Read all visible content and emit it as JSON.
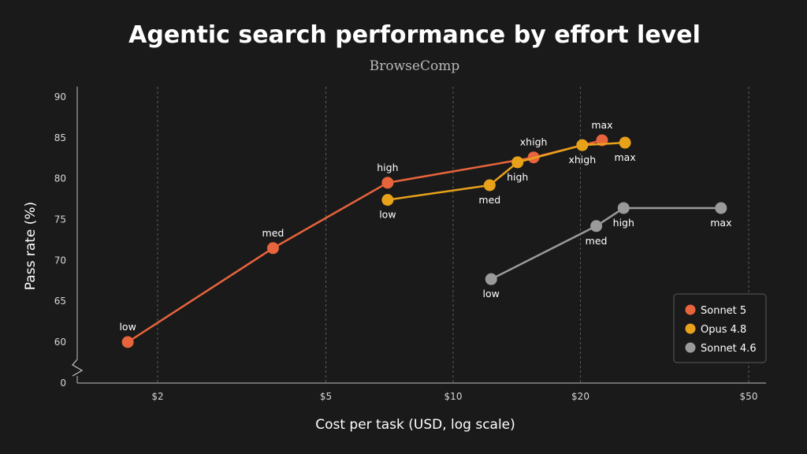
{
  "chart_data": {
    "type": "line",
    "title": "Agentic search performance by effort level",
    "subtitle": "BrowseComp",
    "xlabel": "Cost per task (USD, log scale)",
    "ylabel": "Pass rate (%)",
    "x_scale": "log",
    "x_ticks": [
      {
        "value": 2,
        "label": "$2"
      },
      {
        "value": 5,
        "label": "$5"
      },
      {
        "value": 10,
        "label": "$10"
      },
      {
        "value": 20,
        "label": "$20"
      },
      {
        "value": 50,
        "label": "$50"
      }
    ],
    "y_ticks": [
      90,
      85,
      80,
      75,
      70,
      65,
      60,
      0
    ],
    "y_axis_break": true,
    "ylim": [
      60,
      90
    ],
    "xlim": [
      1.4,
      52
    ],
    "grid": "vertical-dashed",
    "legend_position": "bottom-right",
    "series": [
      {
        "name": "Sonnet 5",
        "color": "#e8643c",
        "points": [
          {
            "x": 1.7,
            "y": 60.0,
            "label": "low",
            "label_pos": "above"
          },
          {
            "x": 3.75,
            "y": 71.5,
            "label": "med",
            "label_pos": "above"
          },
          {
            "x": 7.0,
            "y": 79.5,
            "label": "high",
            "label_pos": "above"
          },
          {
            "x": 15.5,
            "y": 82.6,
            "label": "xhigh",
            "label_pos": "above"
          },
          {
            "x": 22.5,
            "y": 84.7,
            "label": "max",
            "label_pos": "above"
          }
        ]
      },
      {
        "name": "Opus 4.8",
        "color": "#e8a21a",
        "points": [
          {
            "x": 7.0,
            "y": 77.4,
            "label": "low",
            "label_pos": "below"
          },
          {
            "x": 12.2,
            "y": 79.2,
            "label": "med",
            "label_pos": "below"
          },
          {
            "x": 14.2,
            "y": 82.0,
            "label": "high",
            "label_pos": "below"
          },
          {
            "x": 20.2,
            "y": 84.1,
            "label": "xhigh",
            "label_pos": "below"
          },
          {
            "x": 25.5,
            "y": 84.4,
            "label": "max",
            "label_pos": "below"
          }
        ]
      },
      {
        "name": "Sonnet 4.6",
        "color": "#9a9a9a",
        "points": [
          {
            "x": 12.3,
            "y": 67.7,
            "label": "low",
            "label_pos": "below"
          },
          {
            "x": 21.8,
            "y": 74.2,
            "label": "med",
            "label_pos": "below"
          },
          {
            "x": 25.3,
            "y": 76.4,
            "label": "high",
            "label_pos": "below"
          },
          {
            "x": 43.0,
            "y": 76.4,
            "label": "max",
            "label_pos": "below"
          }
        ]
      }
    ]
  }
}
